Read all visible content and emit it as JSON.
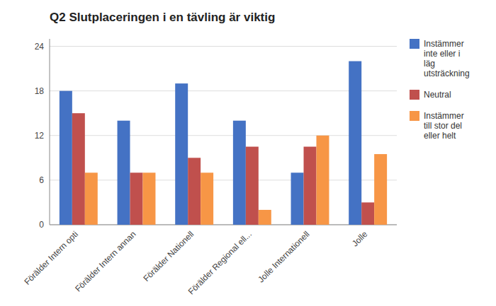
{
  "chart_data": {
    "type": "bar",
    "title": "Q2 Slutplaceringen i en tävling är viktig",
    "categories": [
      "Förälder Intern opti",
      "Förälder Intern annan",
      "Förälder Nationell",
      "Förälder Regional ell...",
      "Jolle Internationell",
      "Jolle"
    ],
    "series": [
      {
        "name": "Instämmer\ninte eller i\nläg\nutsträckning",
        "color": "#4472C4",
        "values": [
          18,
          14,
          19,
          14,
          7,
          22
        ]
      },
      {
        "name": "Neutral",
        "color": "#C0504D",
        "values": [
          15,
          7,
          9,
          10.5,
          10.5,
          3
        ]
      },
      {
        "name": "Instämmer\ntill stor del\neller helt",
        "color": "#F79646",
        "values": [
          7,
          7,
          7,
          2,
          12,
          9.5
        ]
      }
    ],
    "ylim": [
      0,
      25
    ],
    "yticks": [
      0,
      6,
      12,
      18,
      24
    ],
    "grid": true,
    "legend": "right"
  }
}
